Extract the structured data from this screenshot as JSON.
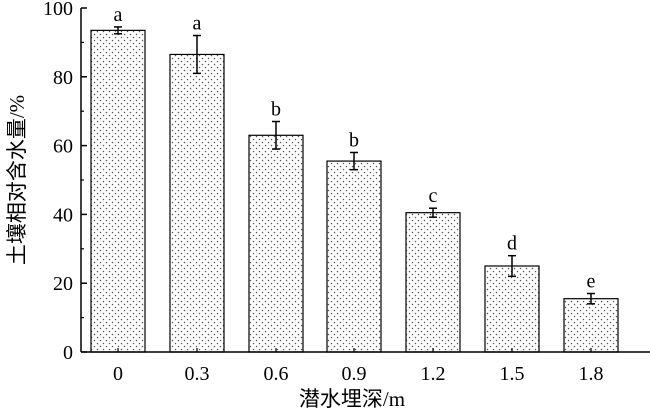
{
  "chart_data": {
    "type": "bar",
    "categories": [
      "0",
      "0.3",
      "0.6",
      "0.9",
      "1.2",
      "1.5",
      "1.8"
    ],
    "values": [
      93.5,
      86.5,
      63,
      55.5,
      40.5,
      25,
      15.5
    ],
    "errors": [
      1,
      5.5,
      4,
      2.5,
      1.3,
      3,
      1.5
    ],
    "significance_letters": [
      "a",
      "a",
      "b",
      "b",
      "c",
      "d",
      "e"
    ],
    "xlabel": "潜水埋深/m",
    "ylabel": "土壤相对含水量/%",
    "ylim": [
      0,
      100
    ],
    "yticks": [
      "0",
      "20",
      "40",
      "60",
      "80",
      "100"
    ],
    "grid": false,
    "bar_fill": "dotted pattern"
  }
}
